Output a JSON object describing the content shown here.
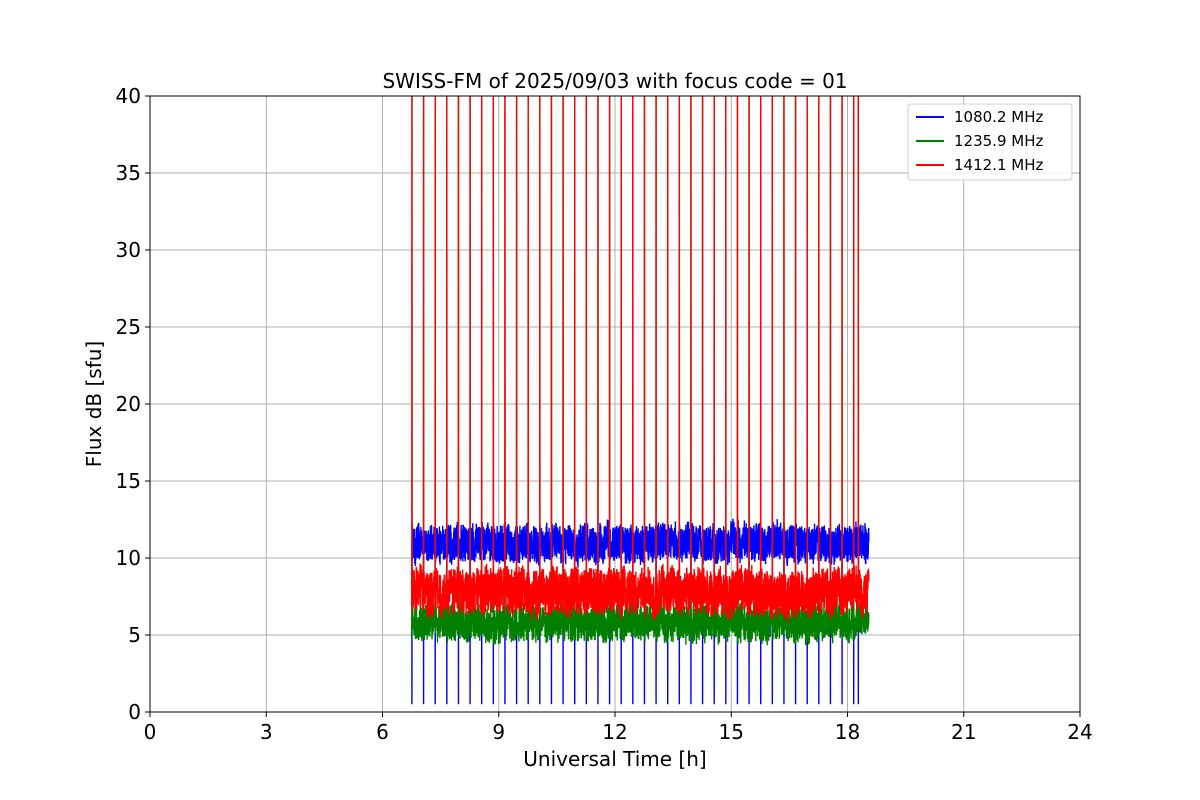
{
  "chart_data": {
    "type": "line",
    "title": "SWISS-FM of 2025/09/03 with focus code = 01",
    "xlabel": "Universal Time [h]",
    "ylabel": "Flux dB [sfu]",
    "xlim": [
      0,
      24
    ],
    "ylim": [
      0,
      40
    ],
    "xticks": [
      "0",
      "3",
      "6",
      "9",
      "12",
      "15",
      "18",
      "21",
      "24"
    ],
    "yticks": [
      "0",
      "5",
      "10",
      "15",
      "20",
      "25",
      "30",
      "35",
      "40"
    ],
    "grid": true,
    "legend_position": "top-right",
    "observation_window": [
      6.75,
      18.55
    ],
    "series": [
      {
        "name": "1080.2 MHz",
        "color": "#0000ff",
        "baseline": 11.0,
        "noise": 1.2,
        "spike": 0.5,
        "spike_dir": "down"
      },
      {
        "name": "1235.9 MHz",
        "color": "#008000",
        "baseline": 5.8,
        "noise": 1.2,
        "spike": 40,
        "spike_dir": "up"
      },
      {
        "name": "1412.1 MHz",
        "color": "#ff0000",
        "baseline": 7.8,
        "noise": 1.5,
        "spike": 40,
        "spike_dir": "up"
      }
    ],
    "spike_times_h": [
      6.76,
      7.06,
      7.36,
      7.66,
      7.96,
      8.26,
      8.56,
      8.86,
      9.16,
      9.46,
      9.76,
      10.06,
      10.36,
      10.66,
      10.96,
      11.26,
      11.56,
      11.86,
      12.16,
      12.46,
      12.76,
      13.06,
      13.36,
      13.66,
      13.96,
      14.26,
      14.56,
      14.86,
      15.16,
      15.46,
      15.76,
      16.06,
      16.36,
      16.66,
      16.96,
      17.26,
      17.56,
      17.86,
      18.16,
      18.28
    ]
  }
}
